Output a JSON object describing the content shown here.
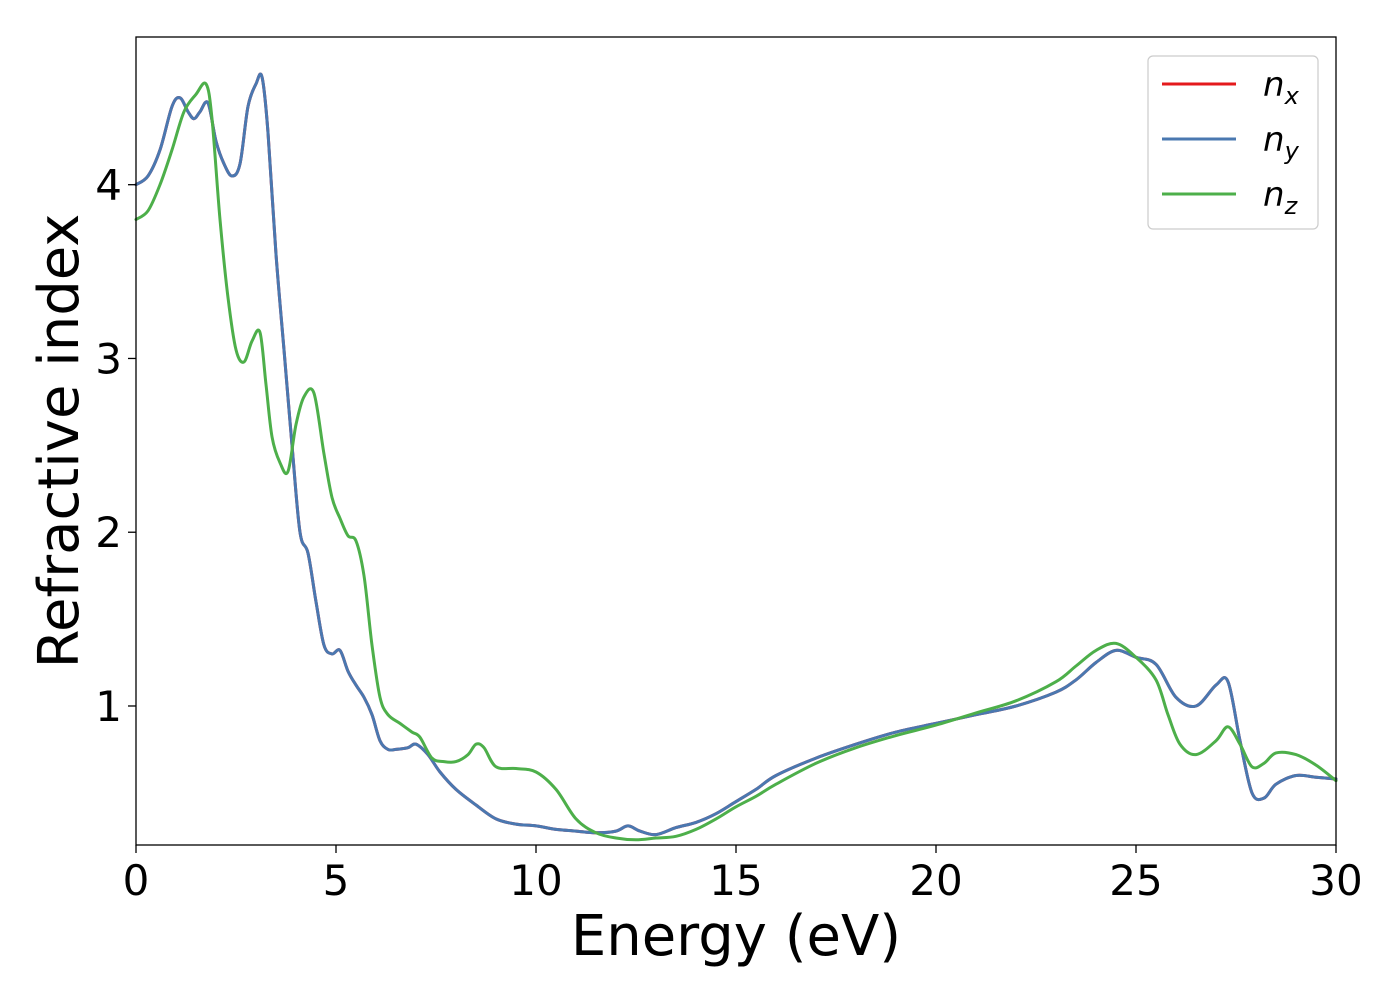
{
  "chart_data": {
    "type": "line",
    "title": "",
    "xlabel": "Energy (eV)",
    "ylabel": "Refractive index",
    "xlim": [
      0,
      30
    ],
    "ylim": [
      0.2,
      4.85
    ],
    "xticks": [
      0,
      5,
      10,
      15,
      20,
      25,
      30
    ],
    "yticks": [
      1,
      2,
      3,
      4
    ],
    "grid": false,
    "legend_position": "top-right",
    "series": [
      {
        "name": "n",
        "subscript": "x",
        "color": "#e41a1c",
        "x": [
          0,
          0.3,
          0.6,
          0.9,
          1.1,
          1.3,
          1.45,
          1.6,
          1.8,
          2.0,
          2.2,
          2.4,
          2.6,
          2.8,
          3.0,
          3.15,
          3.3,
          3.5,
          3.7,
          3.9,
          4.1,
          4.3,
          4.5,
          4.7,
          4.9,
          5.1,
          5.3,
          5.5,
          5.7,
          5.9,
          6.1,
          6.3,
          6.5,
          6.8,
          7.0,
          7.3,
          7.6,
          8.0,
          8.5,
          9.0,
          9.5,
          10.0,
          10.5,
          11.0,
          11.5,
          12.0,
          12.3,
          12.6,
          13.0,
          13.5,
          14.0,
          14.5,
          15.0,
          15.5,
          16.0,
          17.0,
          18.0,
          19.0,
          20.0,
          21.0,
          22.0,
          23.0,
          23.5,
          24.0,
          24.5,
          25.0,
          25.5,
          26.0,
          26.5,
          27.0,
          27.3,
          27.6,
          27.9,
          28.2,
          28.5,
          29.0,
          29.5,
          30.0
        ],
        "y": [
          4.0,
          4.05,
          4.2,
          4.45,
          4.5,
          4.42,
          4.38,
          4.42,
          4.47,
          4.25,
          4.12,
          4.05,
          4.12,
          4.45,
          4.58,
          4.62,
          4.3,
          3.6,
          3.05,
          2.5,
          2.0,
          1.88,
          1.6,
          1.35,
          1.3,
          1.32,
          1.2,
          1.12,
          1.05,
          0.95,
          0.8,
          0.75,
          0.75,
          0.76,
          0.78,
          0.72,
          0.62,
          0.52,
          0.43,
          0.35,
          0.32,
          0.31,
          0.29,
          0.28,
          0.27,
          0.28,
          0.31,
          0.28,
          0.26,
          0.3,
          0.33,
          0.38,
          0.45,
          0.52,
          0.6,
          0.7,
          0.78,
          0.85,
          0.9,
          0.95,
          1.0,
          1.08,
          1.15,
          1.25,
          1.32,
          1.28,
          1.24,
          1.05,
          1.0,
          1.12,
          1.14,
          0.8,
          0.5,
          0.47,
          0.55,
          0.6,
          0.59,
          0.58
        ]
      },
      {
        "name": "n",
        "subscript": "y",
        "color": "#4a78b0",
        "x": [
          0,
          0.3,
          0.6,
          0.9,
          1.1,
          1.3,
          1.45,
          1.6,
          1.8,
          2.0,
          2.2,
          2.4,
          2.6,
          2.8,
          3.0,
          3.15,
          3.3,
          3.5,
          3.7,
          3.9,
          4.1,
          4.3,
          4.5,
          4.7,
          4.9,
          5.1,
          5.3,
          5.5,
          5.7,
          5.9,
          6.1,
          6.3,
          6.5,
          6.8,
          7.0,
          7.3,
          7.6,
          8.0,
          8.5,
          9.0,
          9.5,
          10.0,
          10.5,
          11.0,
          11.5,
          12.0,
          12.3,
          12.6,
          13.0,
          13.5,
          14.0,
          14.5,
          15.0,
          15.5,
          16.0,
          17.0,
          18.0,
          19.0,
          20.0,
          21.0,
          22.0,
          23.0,
          23.5,
          24.0,
          24.5,
          25.0,
          25.5,
          26.0,
          26.5,
          27.0,
          27.3,
          27.6,
          27.9,
          28.2,
          28.5,
          29.0,
          29.5,
          30.0
        ],
        "y": [
          4.0,
          4.05,
          4.2,
          4.45,
          4.5,
          4.42,
          4.38,
          4.42,
          4.47,
          4.25,
          4.12,
          4.05,
          4.12,
          4.45,
          4.58,
          4.62,
          4.3,
          3.6,
          3.05,
          2.5,
          2.0,
          1.88,
          1.6,
          1.35,
          1.3,
          1.32,
          1.2,
          1.12,
          1.05,
          0.95,
          0.8,
          0.75,
          0.75,
          0.76,
          0.78,
          0.72,
          0.62,
          0.52,
          0.43,
          0.35,
          0.32,
          0.31,
          0.29,
          0.28,
          0.27,
          0.28,
          0.31,
          0.28,
          0.26,
          0.3,
          0.33,
          0.38,
          0.45,
          0.52,
          0.6,
          0.7,
          0.78,
          0.85,
          0.9,
          0.95,
          1.0,
          1.08,
          1.15,
          1.25,
          1.32,
          1.28,
          1.24,
          1.05,
          1.0,
          1.12,
          1.14,
          0.8,
          0.5,
          0.47,
          0.55,
          0.6,
          0.59,
          0.58
        ]
      },
      {
        "name": "n",
        "subscript": "z",
        "color": "#4daf4a",
        "x": [
          0,
          0.3,
          0.6,
          0.9,
          1.2,
          1.5,
          1.75,
          1.9,
          2.1,
          2.3,
          2.5,
          2.7,
          2.9,
          3.1,
          3.25,
          3.4,
          3.6,
          3.8,
          4.0,
          4.2,
          4.45,
          4.7,
          4.9,
          5.1,
          5.3,
          5.5,
          5.7,
          5.9,
          6.1,
          6.3,
          6.6,
          6.9,
          7.1,
          7.4,
          7.7,
          8.0,
          8.3,
          8.5,
          8.7,
          9.0,
          9.5,
          10.0,
          10.5,
          11.0,
          11.5,
          12.0,
          12.5,
          13.0,
          13.5,
          14.0,
          14.5,
          15.0,
          15.5,
          16.0,
          17.0,
          18.0,
          19.0,
          20.0,
          21.0,
          22.0,
          23.0,
          23.5,
          24.0,
          24.5,
          25.0,
          25.5,
          25.8,
          26.1,
          26.5,
          27.0,
          27.3,
          27.6,
          27.9,
          28.2,
          28.5,
          29.0,
          29.5,
          30.0
        ],
        "y": [
          3.8,
          3.85,
          4.0,
          4.2,
          4.42,
          4.52,
          4.58,
          4.38,
          3.8,
          3.35,
          3.05,
          2.98,
          3.1,
          3.15,
          2.85,
          2.55,
          2.4,
          2.35,
          2.62,
          2.78,
          2.8,
          2.45,
          2.2,
          2.08,
          1.98,
          1.95,
          1.75,
          1.35,
          1.05,
          0.95,
          0.9,
          0.85,
          0.82,
          0.7,
          0.68,
          0.68,
          0.72,
          0.78,
          0.76,
          0.65,
          0.64,
          0.62,
          0.52,
          0.35,
          0.27,
          0.24,
          0.23,
          0.24,
          0.25,
          0.29,
          0.35,
          0.42,
          0.48,
          0.55,
          0.67,
          0.76,
          0.83,
          0.89,
          0.96,
          1.03,
          1.14,
          1.23,
          1.32,
          1.36,
          1.28,
          1.15,
          0.95,
          0.78,
          0.72,
          0.8,
          0.88,
          0.78,
          0.65,
          0.67,
          0.73,
          0.72,
          0.66,
          0.57
        ]
      }
    ]
  }
}
